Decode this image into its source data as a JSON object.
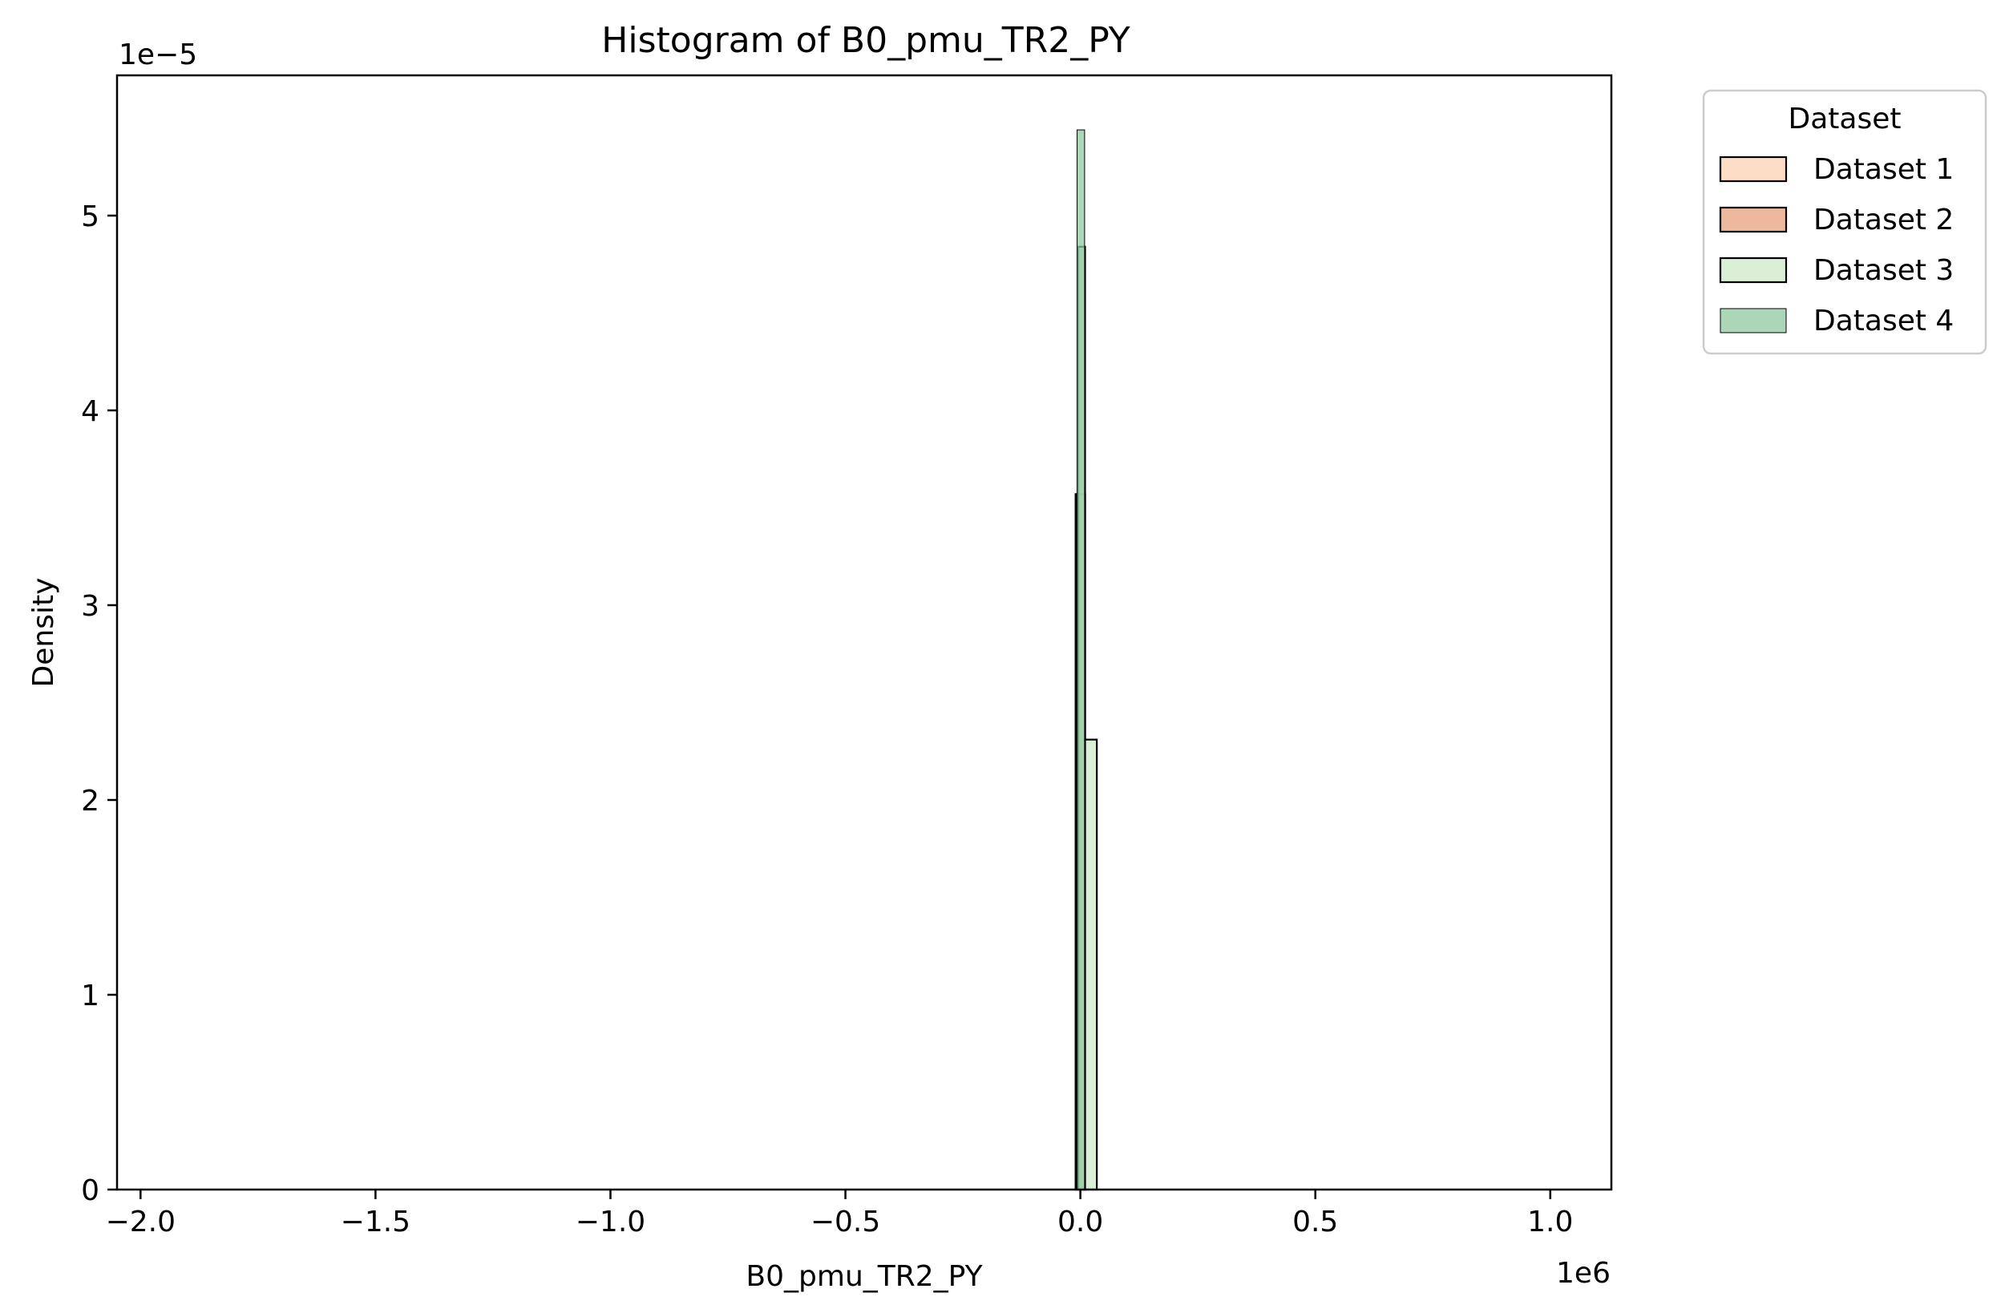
{
  "chart_data": {
    "type": "histogram",
    "title": "Histogram of B0_pmu_TR2_PY",
    "xlabel": "B0_pmu_TR2_PY",
    "ylabel": "Density",
    "x_offset_label": "1e6",
    "y_offset_label": "1e−5",
    "xlim": [
      -2.05,
      1.13
    ],
    "ylim": [
      0,
      5.72
    ],
    "x_ticks": [
      {
        "value": -2.0,
        "label": "−2.0"
      },
      {
        "value": -1.5,
        "label": "−1.5"
      },
      {
        "value": -1.0,
        "label": "−1.0"
      },
      {
        "value": -0.5,
        "label": "−0.5"
      },
      {
        "value": 0.0,
        "label": "0.0"
      },
      {
        "value": 0.5,
        "label": "0.5"
      },
      {
        "value": 1.0,
        "label": "1.0"
      }
    ],
    "y_ticks": [
      {
        "value": 0,
        "label": "0"
      },
      {
        "value": 1,
        "label": "1"
      },
      {
        "value": 2,
        "label": "2"
      },
      {
        "value": 3,
        "label": "3"
      },
      {
        "value": 4,
        "label": "4"
      },
      {
        "value": 5,
        "label": "5"
      }
    ],
    "legend": {
      "title": "Dataset",
      "position": "outside-top-right"
    },
    "series": [
      {
        "name": "Dataset 1",
        "color": "#fdd9bf",
        "opacity": 0.9,
        "stroke_width": 2.2,
        "bins": [
          {
            "x0": -0.01,
            "x1": 0.01,
            "y": 3.57
          }
        ]
      },
      {
        "name": "Dataset 2",
        "color": "#e8a07c",
        "opacity": 0.75,
        "stroke_width": 2.2,
        "bins": [
          {
            "x0": -0.01,
            "x1": 0.01,
            "y": 3.57
          }
        ]
      },
      {
        "name": "Dataset 3",
        "color": "#d5ebcf",
        "opacity": 0.85,
        "stroke_width": 2.2,
        "bins": [
          {
            "x0": -0.005,
            "x1": 0.01,
            "y": 4.84
          },
          {
            "x0": 0.01,
            "x1": 0.035,
            "y": 2.31
          }
        ]
      },
      {
        "name": "Dataset 4",
        "color": "#8fc9a0",
        "opacity": 0.75,
        "stroke_width": 1.0,
        "bins": [
          {
            "x0": -0.007,
            "x1": 0.009,
            "y": 5.44
          }
        ]
      }
    ]
  }
}
